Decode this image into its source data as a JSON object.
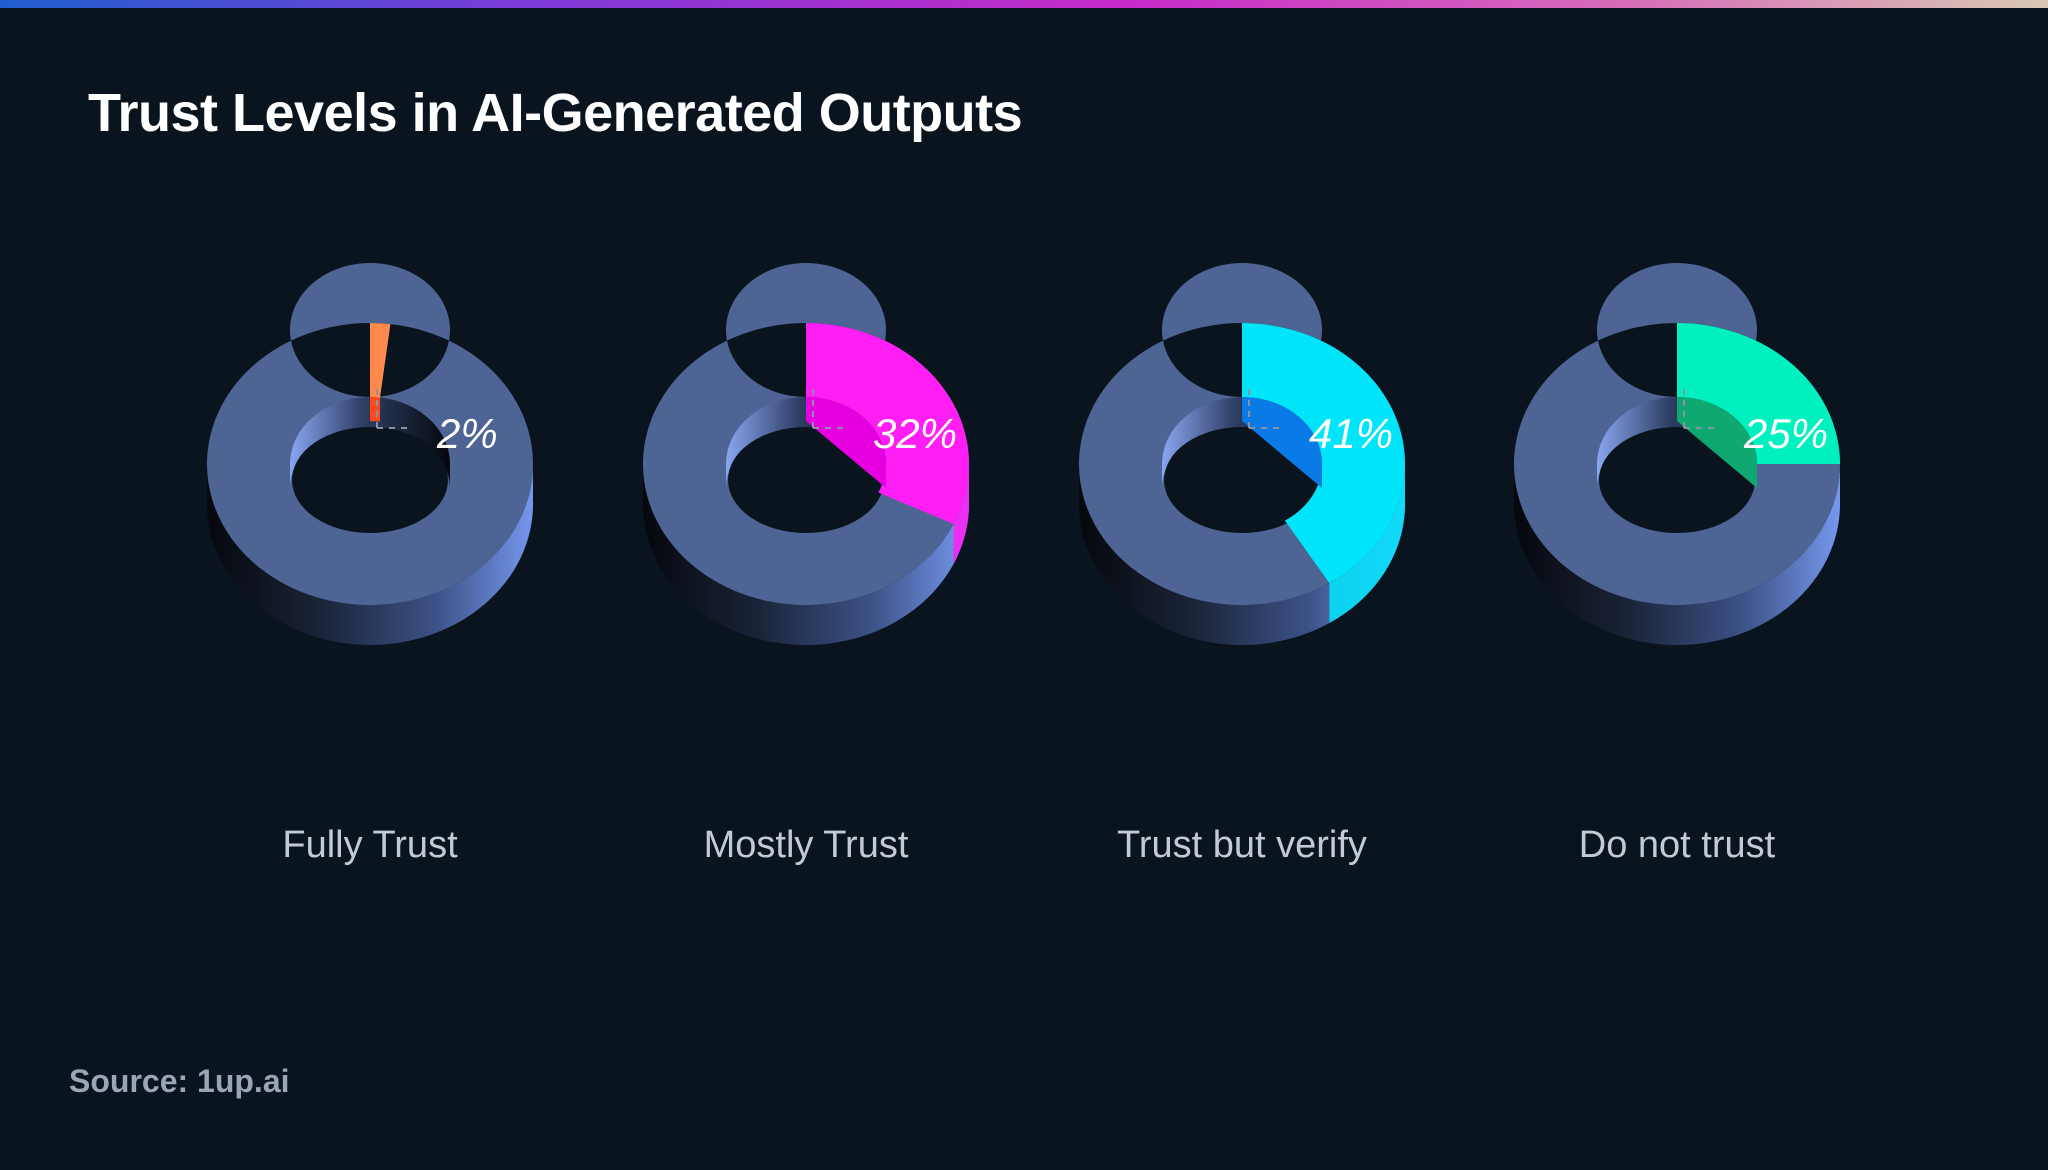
{
  "page": {
    "title": "Trust Levels in AI-Generated Outputs",
    "source": "Source: 1up.ai"
  },
  "colors": {
    "background": "#0a141f",
    "ring": "#4d6494"
  },
  "chart_data": {
    "type": "pie",
    "title": "Trust Levels in AI-Generated Outputs",
    "unit": "%",
    "categories": [
      "Fully Trust",
      "Mostly Trust",
      "Trust but verify",
      "Do not trust"
    ],
    "values": [
      2,
      32,
      41,
      25
    ],
    "value_labels": [
      "2%",
      "32%",
      "41%",
      "25%"
    ],
    "colors": [
      "#ff8a4c",
      "#ff1ff5",
      "#00e5fa",
      "#00f0bf"
    ],
    "dark_colors": [
      "#ff4a1e",
      "#e600e0",
      "#0a7ae6",
      "#0fa870"
    ]
  }
}
